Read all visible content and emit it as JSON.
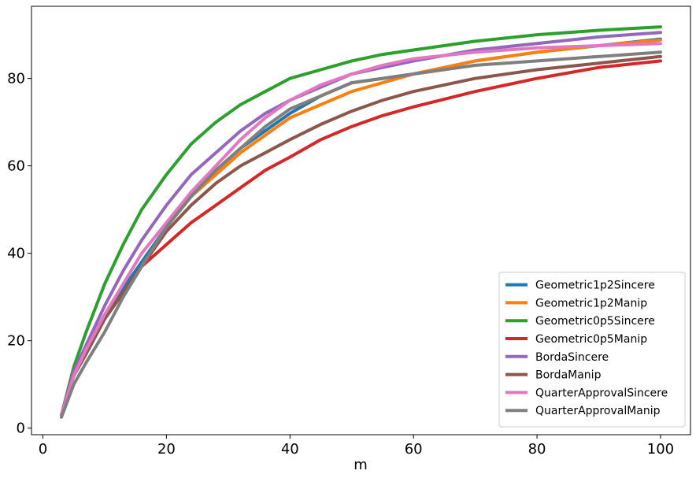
{
  "chart_data": {
    "type": "line",
    "title": "",
    "xlabel": "m",
    "ylabel": "",
    "xlim": [
      -1.85,
      104.85
    ],
    "ylim": [
      -1.5,
      96.5
    ],
    "xticks": [
      0,
      20,
      40,
      60,
      80,
      100
    ],
    "yticks": [
      0,
      20,
      40,
      60,
      80
    ],
    "grid": false,
    "legend_position": "bottom-right",
    "x": [
      3,
      5,
      7,
      10,
      13,
      16,
      20,
      24,
      28,
      32,
      36,
      40,
      45,
      50,
      55,
      60,
      70,
      80,
      90,
      100
    ],
    "series": [
      {
        "name": "Geometric1p2Sincere",
        "color": "#1f77b4",
        "values": [
          3,
          12,
          18,
          26,
          32,
          38,
          46,
          53,
          59,
          64,
          68,
          72,
          76,
          79,
          80,
          81,
          84,
          86,
          87.5,
          89
        ]
      },
      {
        "name": "Geometric1p2Manip",
        "color": "#ff7f0e",
        "values": [
          3,
          12,
          17,
          25,
          31,
          37,
          46,
          53,
          58,
          63,
          67,
          71,
          74,
          77,
          79,
          81,
          84,
          86,
          87.5,
          88.8
        ]
      },
      {
        "name": "Geometric0p5Sincere",
        "color": "#2ca02c",
        "values": [
          3,
          14,
          22,
          33,
          42,
          50,
          58,
          65,
          70,
          74,
          77,
          80,
          82,
          84,
          85.5,
          86.5,
          88.5,
          90,
          91,
          91.8
        ]
      },
      {
        "name": "Geometric0p5Manip",
        "color": "#d62728",
        "values": [
          3,
          13,
          18,
          25,
          31,
          37,
          42,
          47,
          51,
          55,
          59,
          62,
          66,
          69,
          71.5,
          73.5,
          77,
          80,
          82.5,
          84
        ]
      },
      {
        "name": "BordaSincere",
        "color": "#9467bd",
        "values": [
          3,
          13,
          19,
          28,
          36,
          43,
          51,
          58,
          63,
          68,
          72,
          75,
          78,
          81,
          82.5,
          84,
          86.5,
          88,
          89.5,
          90.5
        ]
      },
      {
        "name": "BordaManip",
        "color": "#8c564b",
        "values": [
          3,
          12,
          17,
          25,
          31,
          37,
          45,
          51,
          56,
          60,
          63,
          66,
          69.5,
          72.5,
          75,
          77,
          80,
          82,
          83.5,
          85
        ]
      },
      {
        "name": "QuarterApprovalSincere",
        "color": "#e377c2",
        "values": [
          3,
          12,
          18,
          26,
          33,
          40,
          47,
          54,
          60,
          66,
          71,
          75,
          78.5,
          81,
          83,
          84.5,
          86,
          87,
          87.5,
          88
        ]
      },
      {
        "name": "QuarterApprovalManip",
        "color": "#7f7f7f",
        "values": [
          2.5,
          10,
          15,
          22,
          30,
          37,
          46,
          53,
          59,
          64,
          69,
          73,
          76,
          79,
          80,
          81,
          83,
          84,
          85,
          86
        ]
      }
    ]
  }
}
